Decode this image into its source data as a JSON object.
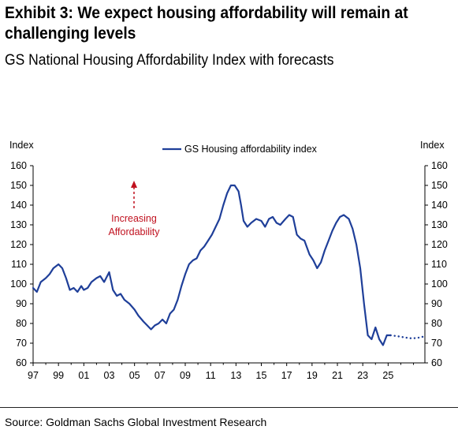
{
  "header": {
    "title": "Exhibit 3: We expect housing affordability will remain at challenging levels",
    "subtitle": "GS National Housing Affordability Index with forecasts"
  },
  "footer": {
    "source": "Source: Goldman Sachs Global Investment Research"
  },
  "colors": {
    "line": "#1f3f99",
    "annotation": "#c0111f",
    "axis": "#000000"
  },
  "chart_data": {
    "type": "line",
    "title": "",
    "left_axis_label": "Index",
    "right_axis_label": "Index",
    "ylim": [
      60,
      160
    ],
    "yticks": [
      60,
      70,
      80,
      90,
      100,
      110,
      120,
      130,
      140,
      150,
      160
    ],
    "xlim": [
      1997,
      2027.9
    ],
    "xticks": [
      1997,
      1999,
      2001,
      2003,
      2005,
      2007,
      2009,
      2011,
      2013,
      2015,
      2017,
      2019,
      2021,
      2023,
      2025
    ],
    "xtick_labels": [
      "97",
      "99",
      "01",
      "03",
      "05",
      "07",
      "09",
      "11",
      "13",
      "15",
      "17",
      "19",
      "21",
      "23",
      "25"
    ],
    "grid": false,
    "legend": {
      "position": "top-center",
      "entries": [
        "GS Housing affordability index"
      ]
    },
    "annotation": {
      "text": [
        "Increasing",
        "Affordability"
      ],
      "direction": "up"
    },
    "series": [
      {
        "name": "GS Housing affordability index",
        "style": "solid",
        "x": [
          1997.0,
          1997.3,
          1997.6,
          1998.0,
          1998.3,
          1998.6,
          1999.0,
          1999.3,
          1999.6,
          1999.9,
          2000.2,
          2000.5,
          2000.8,
          2001.0,
          2001.3,
          2001.6,
          2002.0,
          2002.3,
          2002.6,
          2003.0,
          2003.3,
          2003.6,
          2003.9,
          2004.2,
          2004.6,
          2005.0,
          2005.3,
          2005.7,
          2006.0,
          2006.3,
          2006.6,
          2006.9,
          2007.2,
          2007.5,
          2007.8,
          2008.1,
          2008.4,
          2008.7,
          2009.0,
          2009.3,
          2009.6,
          2009.9,
          2010.2,
          2010.5,
          2010.8,
          2011.1,
          2011.4,
          2011.7,
          2012.0,
          2012.3,
          2012.6,
          2012.9,
          2013.2,
          2013.4,
          2013.6,
          2013.9,
          2014.2,
          2014.6,
          2015.0,
          2015.3,
          2015.6,
          2015.9,
          2016.2,
          2016.5,
          2016.9,
          2017.2,
          2017.5,
          2017.8,
          2018.1,
          2018.4,
          2018.8,
          2019.1,
          2019.4,
          2019.7,
          2020.0,
          2020.3,
          2020.6,
          2020.9,
          2021.2,
          2021.5,
          2021.9,
          2022.2,
          2022.5,
          2022.8,
          2023.1,
          2023.4,
          2023.7,
          2024.0,
          2024.3,
          2024.6,
          2024.9,
          2025.2
        ],
        "y": [
          98,
          96,
          101,
          103,
          105,
          108,
          110,
          108,
          103,
          97,
          98,
          96,
          99,
          97,
          98,
          101,
          103,
          104,
          101,
          106,
          97,
          94,
          95,
          92,
          90,
          87,
          84,
          81,
          79,
          77,
          79,
          80,
          82,
          80,
          85,
          87,
          92,
          99,
          105,
          110,
          112,
          113,
          117,
          119,
          122,
          125,
          129,
          133,
          140,
          146,
          150,
          150,
          147,
          140,
          132,
          129,
          131,
          133,
          132,
          129,
          133,
          134,
          131,
          130,
          133,
          135,
          134,
          125,
          123,
          122,
          115,
          112,
          108,
          111,
          117,
          122,
          127,
          131,
          134,
          135,
          133,
          128,
          120,
          108,
          90,
          74,
          72,
          78,
          72,
          69,
          74,
          74
        ]
      },
      {
        "name": "",
        "style": "dotted",
        "x": [
          2025.2,
          2025.8,
          2026.4,
          2026.9,
          2027.4,
          2027.9
        ],
        "y": [
          74,
          73.5,
          72.8,
          72.4,
          72.8,
          73.5
        ]
      }
    ]
  }
}
